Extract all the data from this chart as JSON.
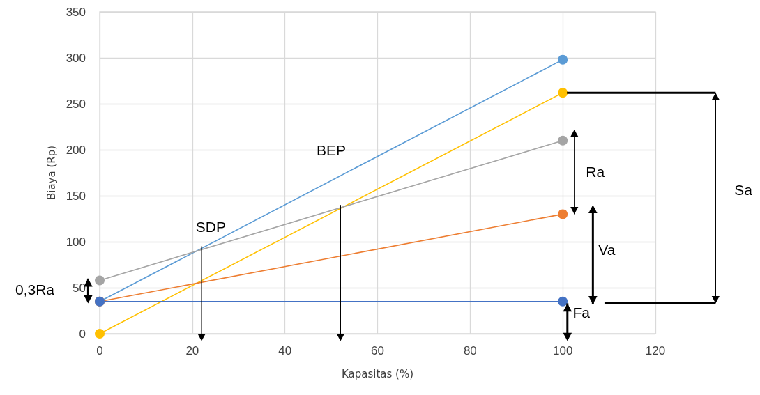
{
  "chart_data": {
    "type": "line",
    "xlabel": "Kapasitas (%)",
    "ylabel": "Biaya (Rp)",
    "x": [
      0,
      100
    ],
    "series": [
      {
        "color": "#5b9bd5",
        "values": [
          35,
          298
        ]
      },
      {
        "color": "#ffc000",
        "values": [
          0,
          262
        ]
      },
      {
        "color": "#a5a5a5",
        "values": [
          58,
          210
        ]
      },
      {
        "color": "#ed7d31",
        "values": [
          35,
          130
        ]
      },
      {
        "color": "#4472c4",
        "values": [
          35,
          35
        ]
      }
    ],
    "xlim": [
      0,
      120
    ],
    "xticks": [
      0,
      20,
      40,
      60,
      80,
      100,
      120
    ],
    "ylim": [
      0,
      350
    ],
    "yticks": [
      0,
      50,
      100,
      150,
      200,
      250,
      300,
      350
    ],
    "grid": true,
    "marker": "circle",
    "line_style": "solid",
    "annotations": [
      "BEP",
      "SDP",
      "Ra",
      "Va",
      "Fa",
      "Sa",
      "0,3Ra"
    ]
  }
}
